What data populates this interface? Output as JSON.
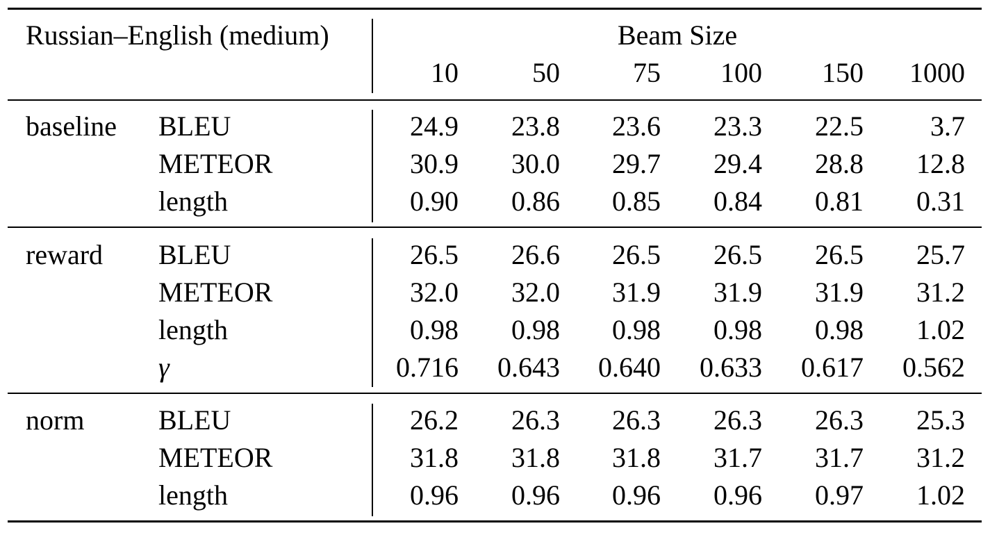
{
  "table": {
    "title": "Russian–English (medium)",
    "group_header": "Beam Size",
    "beam_sizes": [
      "10",
      "50",
      "75",
      "100",
      "150",
      "1000"
    ],
    "groups": [
      {
        "method": "baseline",
        "rows": [
          {
            "metric": "BLEU",
            "values": [
              "24.9",
              "23.8",
              "23.6",
              "23.3",
              "22.5",
              "3.7"
            ]
          },
          {
            "metric": "METEOR",
            "values": [
              "30.9",
              "30.0",
              "29.7",
              "29.4",
              "28.8",
              "12.8"
            ]
          },
          {
            "metric": "length",
            "values": [
              "0.90",
              "0.86",
              "0.85",
              "0.84",
              "0.81",
              "0.31"
            ]
          }
        ]
      },
      {
        "method": "reward",
        "rows": [
          {
            "metric": "BLEU",
            "values": [
              "26.5",
              "26.6",
              "26.5",
              "26.5",
              "26.5",
              "25.7"
            ]
          },
          {
            "metric": "METEOR",
            "values": [
              "32.0",
              "32.0",
              "31.9",
              "31.9",
              "31.9",
              "31.2"
            ]
          },
          {
            "metric": "length",
            "values": [
              "0.98",
              "0.98",
              "0.98",
              "0.98",
              "0.98",
              "1.02"
            ]
          },
          {
            "metric": "γ",
            "values": [
              "0.716",
              "0.643",
              "0.640",
              "0.633",
              "0.617",
              "0.562"
            ]
          }
        ]
      },
      {
        "method": "norm",
        "rows": [
          {
            "metric": "BLEU",
            "values": [
              "26.2",
              "26.3",
              "26.3",
              "26.3",
              "26.3",
              "25.3"
            ]
          },
          {
            "metric": "METEOR",
            "values": [
              "31.8",
              "31.8",
              "31.8",
              "31.7",
              "31.7",
              "31.2"
            ]
          },
          {
            "metric": "length",
            "values": [
              "0.96",
              "0.96",
              "0.96",
              "0.96",
              "0.97",
              "1.02"
            ]
          }
        ]
      }
    ]
  }
}
